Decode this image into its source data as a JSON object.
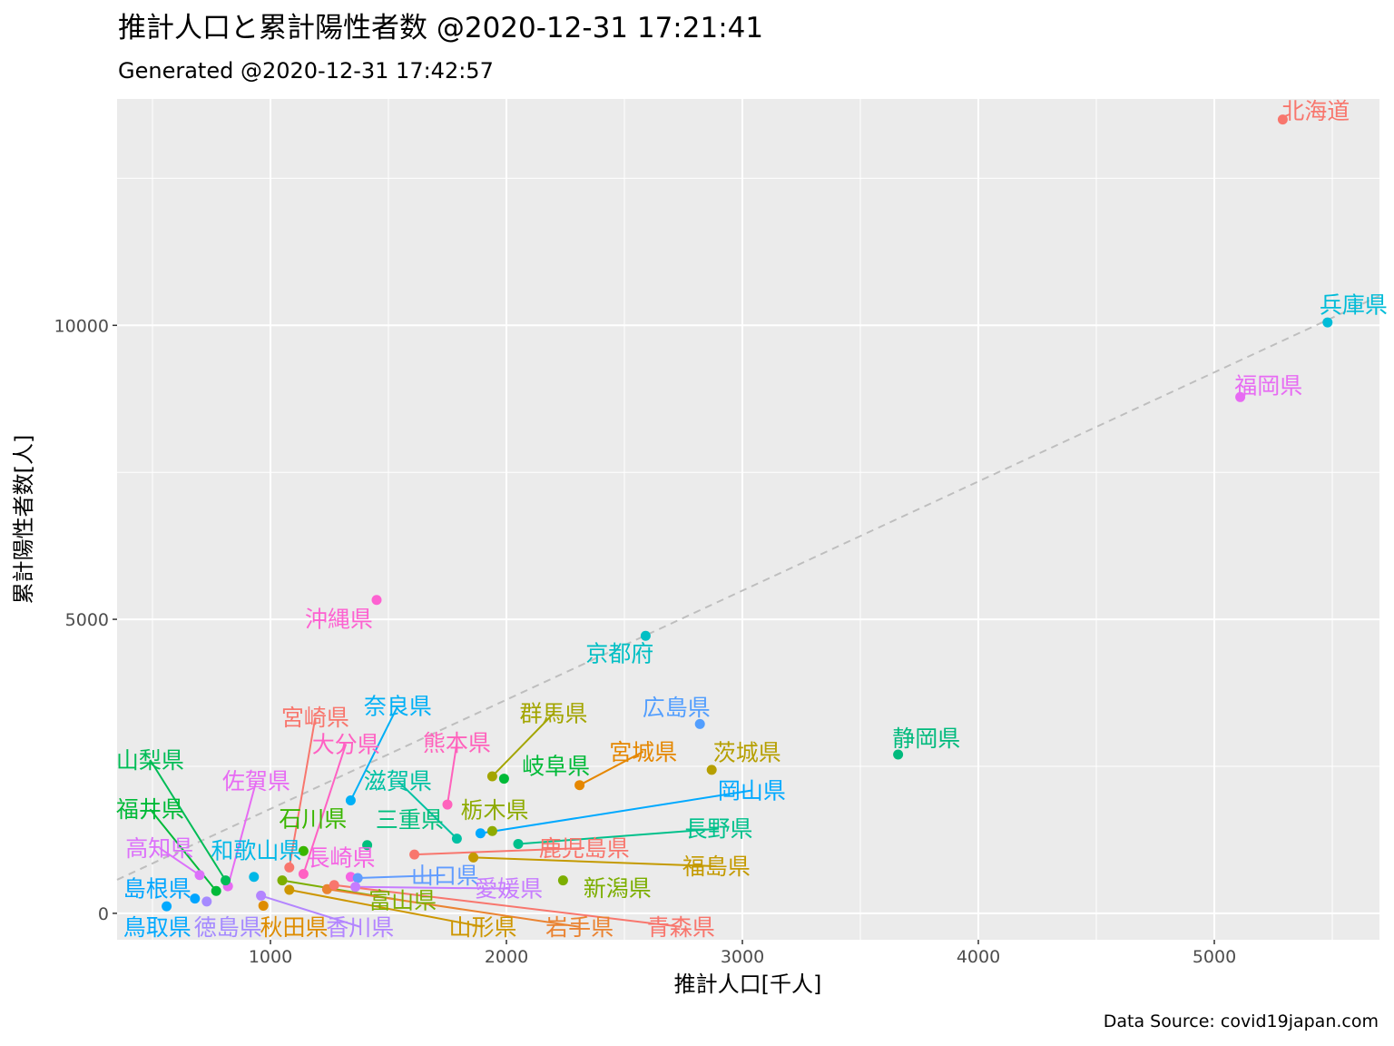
{
  "chart_data": {
    "type": "scatter",
    "title": "推計人口と累計陽性者数 @2020-12-31 17:21:41",
    "subtitle": "Generated @2020-12-31 17:42:57",
    "xlabel": "推計人口[千人]",
    "ylabel": "累計陽性者数[人]",
    "caption": "Data Source: covid19japan.com",
    "xlim": [
      350,
      5700
    ],
    "ylim": [
      -450,
      13850
    ],
    "x_ticks": [
      1000,
      2000,
      3000,
      4000,
      5000
    ],
    "x_tick_labels": [
      "1000",
      "2000",
      "3000",
      "4000",
      "5000"
    ],
    "y_ticks": [
      0,
      5000,
      10000
    ],
    "y_tick_labels": [
      "0",
      "5000",
      "10000"
    ],
    "grid": true,
    "reference_line": {
      "style": "dashed",
      "color": "#bebebe",
      "from": [
        350,
        570
      ],
      "to": [
        5700,
        10500
      ]
    },
    "points": [
      {
        "name": "北海道",
        "x": 5290,
        "y": 13500,
        "color": "#f8766d",
        "lx": 5430,
        "ly": 13650
      },
      {
        "name": "兵庫県",
        "x": 5480,
        "y": 10050,
        "color": "#00bcd8",
        "lx": 5590,
        "ly": 10350
      },
      {
        "name": "福岡県",
        "x": 5110,
        "y": 8780,
        "color": "#e76bf3",
        "lx": 5230,
        "ly": 8980
      },
      {
        "name": "静岡県",
        "x": 3660,
        "y": 2700,
        "color": "#00ba7d",
        "lx": 3780,
        "ly": 2980
      },
      {
        "name": "沖縄県",
        "x": 1450,
        "y": 5330,
        "color": "#fd61d1",
        "lx": 1290,
        "ly": 5010
      },
      {
        "name": "京都府",
        "x": 2590,
        "y": 4720,
        "color": "#00bfc4",
        "lx": 2480,
        "ly": 4420
      },
      {
        "name": "広島県",
        "x": 2820,
        "y": 3220,
        "color": "#529efe",
        "lx": 2720,
        "ly": 3500
      },
      {
        "name": "茨城県",
        "x": 2870,
        "y": 2440,
        "color": "#b69f00",
        "lx": 3020,
        "ly": 2740
      },
      {
        "name": "宮城県",
        "x": 2310,
        "y": 2180,
        "color": "#e58700",
        "lx": 2580,
        "ly": 2750,
        "leader": true
      },
      {
        "name": "群馬県",
        "x": 1940,
        "y": 2330,
        "color": "#a3a500",
        "lx": 2200,
        "ly": 3400,
        "leader": true
      },
      {
        "name": "岐阜県",
        "x": 1990,
        "y": 2290,
        "color": "#00ba38",
        "lx": 2210,
        "ly": 2510
      },
      {
        "name": "岡山県",
        "x": 1890,
        "y": 1360,
        "color": "#00a9ff",
        "lx": 3040,
        "ly": 2090,
        "leader": true
      },
      {
        "name": "長野県",
        "x": 2050,
        "y": 1180,
        "color": "#00c08b",
        "lx": 2900,
        "ly": 1440,
        "leader": true
      },
      {
        "name": "栃木県",
        "x": 1940,
        "y": 1400,
        "color": "#8eab00",
        "lx": 1950,
        "ly": 1760
      },
      {
        "name": "熊本県",
        "x": 1750,
        "y": 1850,
        "color": "#ff62bc",
        "lx": 1790,
        "ly": 2900,
        "leader": true
      },
      {
        "name": "滋賀県",
        "x": 1790,
        "y": 1270,
        "color": "#00c1a3",
        "lx": 1540,
        "ly": 2250,
        "leader": true
      },
      {
        "name": "奈良県",
        "x": 1340,
        "y": 1920,
        "color": "#00b0f6",
        "lx": 1540,
        "ly": 3530,
        "leader": true
      },
      {
        "name": "三重県",
        "x": 1410,
        "y": 1160,
        "color": "#00bf7d",
        "lx": 1590,
        "ly": 1600
      },
      {
        "name": "大分県",
        "x": 1140,
        "y": 670,
        "color": "#ff61c3",
        "lx": 1320,
        "ly": 2880,
        "leader": true
      },
      {
        "name": "宮崎県",
        "x": 1080,
        "y": 780,
        "color": "#f8766d",
        "lx": 1190,
        "ly": 3330,
        "leader": true
      },
      {
        "name": "佐賀県",
        "x": 820,
        "y": 460,
        "color": "#e76bf3",
        "lx": 940,
        "ly": 2250,
        "leader": true
      },
      {
        "name": "石川県",
        "x": 1140,
        "y": 1060,
        "color": "#39b600",
        "lx": 1180,
        "ly": 1610
      },
      {
        "name": "鹿児島県",
        "x": 1610,
        "y": 1000,
        "color": "#f8766d",
        "lx": 2330,
        "ly": 1110,
        "leader": true
      },
      {
        "name": "福島県",
        "x": 1860,
        "y": 950,
        "color": "#c49a00",
        "lx": 2890,
        "ly": 800,
        "leader": true
      },
      {
        "name": "長崎県",
        "x": 1340,
        "y": 620,
        "color": "#f564e3",
        "lx": 1300,
        "ly": 950
      },
      {
        "name": "山口県",
        "x": 1370,
        "y": 600,
        "color": "#619cff",
        "lx": 1740,
        "ly": 650,
        "leader": true
      },
      {
        "name": "愛媛県",
        "x": 1360,
        "y": 450,
        "color": "#c77cff",
        "lx": 2010,
        "ly": 420,
        "leader": true
      },
      {
        "name": "新潟県",
        "x": 2240,
        "y": 560,
        "color": "#7cae00",
        "lx": 2470,
        "ly": 430
      },
      {
        "name": "富山県",
        "x": 1050,
        "y": 560,
        "color": "#7cae00",
        "lx": 1560,
        "ly": 220,
        "leader": true
      },
      {
        "name": "山形県",
        "x": 1080,
        "y": 400,
        "color": "#cd9600",
        "lx": 1900,
        "ly": -230,
        "leader": true
      },
      {
        "name": "岩手県",
        "x": 1240,
        "y": 410,
        "color": "#ea8331",
        "lx": 2310,
        "ly": -230,
        "leader": true
      },
      {
        "name": "青森県",
        "x": 1270,
        "y": 480,
        "color": "#f8766d",
        "lx": 2740,
        "ly": -230,
        "leader": true
      },
      {
        "name": "秋田県",
        "x": 970,
        "y": 130,
        "color": "#de8c00",
        "lx": 1100,
        "ly": -230
      },
      {
        "name": "香川県",
        "x": 960,
        "y": 300,
        "color": "#b385ff",
        "lx": 1380,
        "ly": -230,
        "leader": true
      },
      {
        "name": "徳島県",
        "x": 730,
        "y": 200,
        "color": "#a58aff",
        "lx": 820,
        "ly": -230
      },
      {
        "name": "鳥取県",
        "x": 560,
        "y": 120,
        "color": "#00a9ff",
        "lx": 520,
        "ly": -230
      },
      {
        "name": "島根県",
        "x": 680,
        "y": 250,
        "color": "#00a5ff",
        "lx": 520,
        "ly": 420
      },
      {
        "name": "高知県",
        "x": 700,
        "y": 650,
        "color": "#dc71fa",
        "lx": 530,
        "ly": 1110,
        "leader": true
      },
      {
        "name": "和歌山県",
        "x": 930,
        "y": 620,
        "color": "#00b8e7",
        "lx": 940,
        "ly": 1070
      },
      {
        "name": "福井県",
        "x": 770,
        "y": 380,
        "color": "#00ba38",
        "lx": 490,
        "ly": 1770,
        "leader": true
      },
      {
        "name": "山梨県",
        "x": 810,
        "y": 560,
        "color": "#00bc56",
        "lx": 490,
        "ly": 2610,
        "leader": true
      }
    ]
  }
}
